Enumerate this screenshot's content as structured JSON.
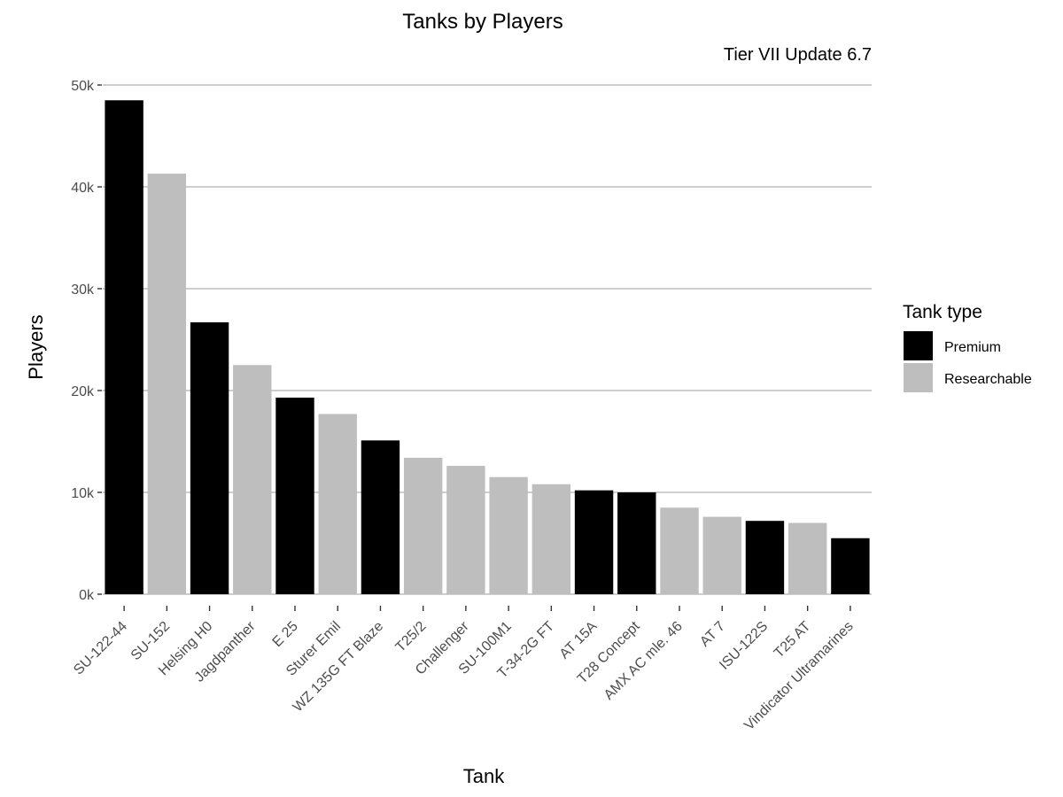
{
  "chart_data": {
    "type": "bar",
    "title": "Tanks by Players",
    "subtitle": "Tier VII Update 6.7",
    "xlabel": "Tank",
    "ylabel": "Players",
    "ylim": [
      0,
      50000
    ],
    "y_ticks": [
      0,
      10000,
      20000,
      30000,
      40000,
      50000
    ],
    "y_tick_labels": [
      "0k",
      "10k",
      "20k",
      "30k",
      "40k",
      "50k"
    ],
    "grid": "horizontal",
    "legend": {
      "title": "Tank type",
      "position": "right",
      "entries": [
        {
          "name": "Premium",
          "color": "#000000"
        },
        {
          "name": "Researchable",
          "color": "#bebebe"
        }
      ]
    },
    "categories": [
      "SU-122-44",
      "SU-152",
      "Helsing H0",
      "Jagdpanther",
      "E 25",
      "Sturer Emil",
      "WZ 135G FT Blaze",
      "T25/2",
      "Challenger",
      "SU-100M1",
      "T-34-2G FT",
      "AT 15A",
      "T28 Concept",
      "AMX AC mle. 46",
      "AT 7",
      "ISU-122S",
      "T25 AT",
      "Vindicator Ultramarines"
    ],
    "values": [
      48500,
      41300,
      26700,
      22500,
      19300,
      17700,
      15100,
      13400,
      12600,
      11500,
      10800,
      10200,
      10000,
      8500,
      7600,
      7200,
      7000,
      5500
    ],
    "types": [
      "Premium",
      "Researchable",
      "Premium",
      "Researchable",
      "Premium",
      "Researchable",
      "Premium",
      "Researchable",
      "Researchable",
      "Researchable",
      "Researchable",
      "Premium",
      "Premium",
      "Researchable",
      "Researchable",
      "Premium",
      "Researchable",
      "Premium"
    ]
  }
}
